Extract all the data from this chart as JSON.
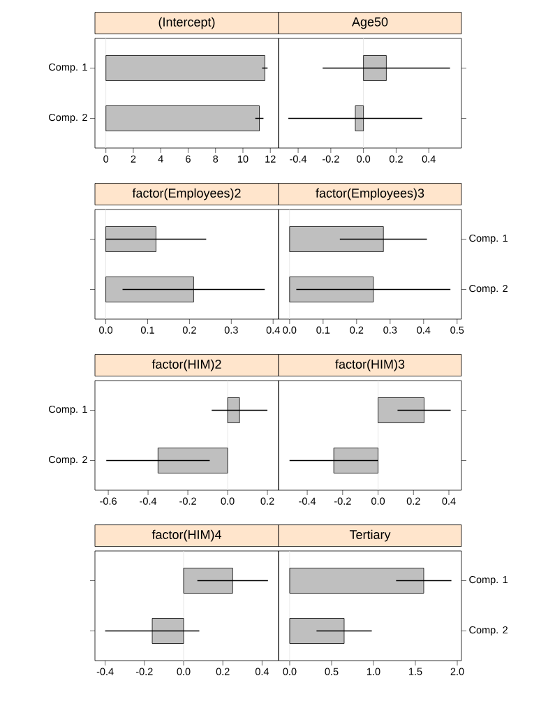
{
  "chart_data": [
    {
      "type": "bar",
      "orientation": "horizontal",
      "title": "(Intercept)",
      "categories": [
        "Comp. 1",
        "Comp. 2"
      ],
      "values": [
        11.6,
        11.2
      ],
      "errors": [
        0.2,
        0.3
      ],
      "color": "#bfbfbf",
      "xlim": [
        -0.8,
        12.6
      ],
      "xticks": [
        0,
        2,
        4,
        6,
        8,
        10,
        12
      ],
      "ref_lines": [
        {
          "axis": "x",
          "value": 0,
          "color": "#e6e6e6"
        }
      ]
    },
    {
      "type": "bar",
      "orientation": "horizontal",
      "title": "Age50",
      "categories": [
        null,
        null
      ],
      "values": [
        0.14,
        -0.05
      ],
      "errors": [
        0.39,
        0.41
      ],
      "color": "#bfbfbf",
      "xlim": [
        -0.52,
        0.6
      ],
      "xticks": [
        -0.4,
        -0.2,
        {
          "value": 0,
          "label": "0.0"
        },
        0.2,
        0.4
      ],
      "ref_lines": [
        {
          "axis": "x",
          "value": 0,
          "color": "#e6e6e6"
        }
      ]
    },
    {
      "type": "bar",
      "orientation": "horizontal",
      "title": "factor(Employees)2",
      "categories": [
        null,
        null
      ],
      "values": [
        0.12,
        0.21
      ],
      "errors": [
        0.12,
        0.17
      ],
      "color": "#bfbfbf",
      "xlim": [
        -0.026,
        0.413
      ],
      "xticks": [
        {
          "value": 0,
          "label": "0.0"
        },
        0.1,
        0.2,
        0.3,
        0.4
      ],
      "ref_lines": [
        {
          "axis": "x",
          "value": 0,
          "color": "#e6e6e6"
        }
      ]
    },
    {
      "type": "bar",
      "orientation": "horizontal",
      "title": "factor(Employees)3",
      "categories": [
        "Comp. 1",
        "Comp. 2"
      ],
      "values": [
        0.28,
        0.25
      ],
      "errors": [
        0.13,
        0.23
      ],
      "color": "#bfbfbf",
      "xlim": [
        -0.033,
        0.513
      ],
      "xticks": [
        {
          "value": 0,
          "label": "0.0"
        },
        0.1,
        0.2,
        0.3,
        0.4,
        0.5
      ],
      "ref_lines": [
        {
          "axis": "x",
          "value": 0,
          "color": "#e6e6e6"
        }
      ]
    },
    {
      "type": "bar",
      "orientation": "horizontal",
      "title": "factor(HIM)2",
      "categories": [
        "Comp. 1",
        "Comp. 2"
      ],
      "values": [
        0.06,
        -0.35
      ],
      "errors": [
        0.14,
        0.26
      ],
      "color": "#bfbfbf",
      "xlim": [
        -0.667,
        0.256
      ],
      "xticks": [
        -0.6,
        -0.4,
        -0.2,
        {
          "value": 0,
          "label": "0.0"
        },
        0.2
      ],
      "ref_lines": [
        {
          "axis": "x",
          "value": 0,
          "color": "#e6e6e6"
        }
      ]
    },
    {
      "type": "bar",
      "orientation": "horizontal",
      "title": "factor(HIM)3",
      "categories": [
        null,
        null
      ],
      "values": [
        0.26,
        -0.25
      ],
      "errors": [
        0.15,
        0.25
      ],
      "color": "#bfbfbf",
      "xlim": [
        -0.562,
        0.471
      ],
      "xticks": [
        -0.4,
        -0.2,
        {
          "value": 0,
          "label": "0.0"
        },
        0.2,
        0.4
      ],
      "ref_lines": [
        {
          "axis": "x",
          "value": 0,
          "color": "#e6e6e6"
        }
      ]
    },
    {
      "type": "bar",
      "orientation": "horizontal",
      "title": "factor(HIM)4",
      "categories": [
        null,
        null
      ],
      "values": [
        0.25,
        -0.16
      ],
      "errors": [
        0.18,
        0.24
      ],
      "color": "#bfbfbf",
      "xlim": [
        -0.452,
        0.484
      ],
      "xticks": [
        -0.4,
        -0.2,
        {
          "value": 0,
          "label": "0.0"
        },
        0.2,
        0.4
      ],
      "ref_lines": [
        {
          "axis": "x",
          "value": 0,
          "color": "#e6e6e6"
        }
      ]
    },
    {
      "type": "bar",
      "orientation": "horizontal",
      "title": "Tertiary",
      "categories": [
        "Comp. 1",
        "Comp. 2"
      ],
      "values": [
        1.6,
        0.65
      ],
      "errors": [
        0.33,
        0.33
      ],
      "color": "#bfbfbf",
      "xlim": [
        -0.133,
        2.05
      ],
      "xticks": [
        {
          "value": 0,
          "label": "0.0"
        },
        0.5,
        {
          "value": 1,
          "label": "1.0"
        },
        1.5,
        {
          "value": 2,
          "label": "2.0"
        }
      ],
      "ref_lines": [
        {
          "axis": "x",
          "value": 0,
          "color": "#e6e6e6"
        }
      ]
    }
  ]
}
